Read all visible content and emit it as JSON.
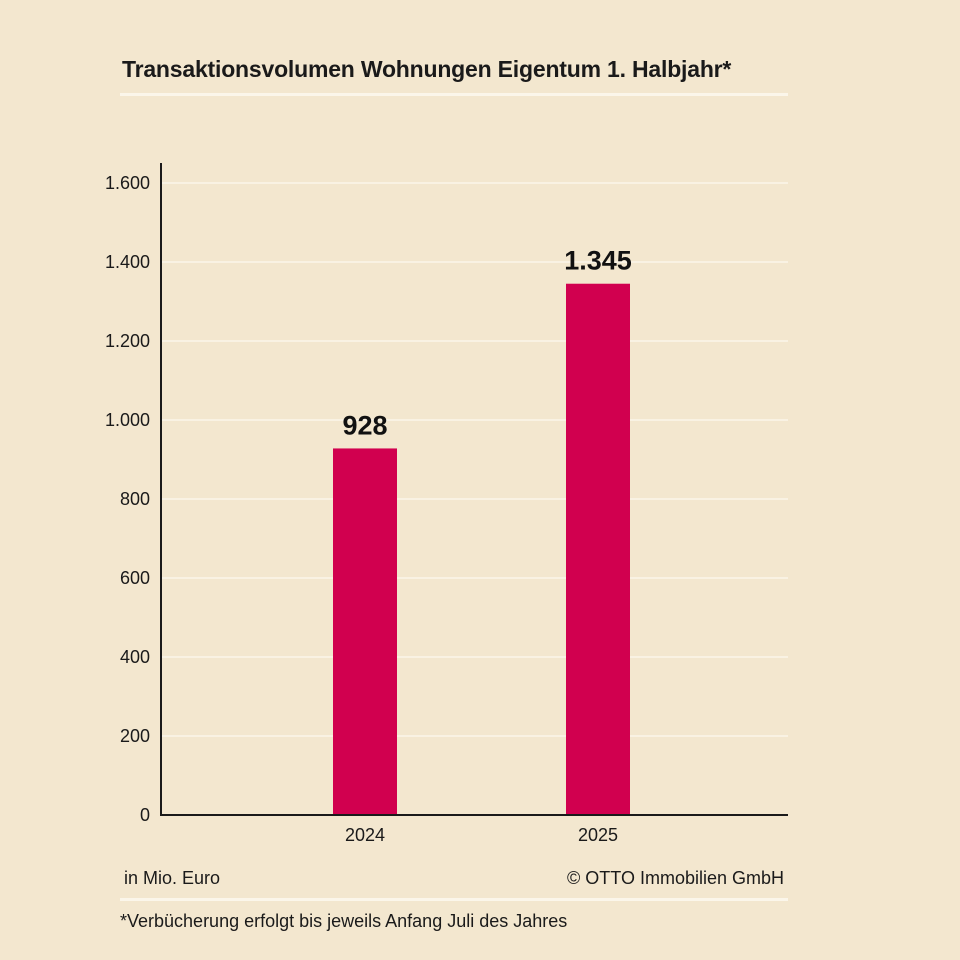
{
  "chart_data": {
    "type": "bar",
    "title": "Transaktionsvolumen Wohnungen Eigentum 1. Halbjahr*",
    "categories": [
      "2024",
      "2025"
    ],
    "values": [
      928,
      1345
    ],
    "data_labels": [
      "928",
      "1.345"
    ],
    "ylim": [
      0,
      1600
    ],
    "yticks": [
      0,
      200,
      400,
      600,
      800,
      1000,
      1200,
      1400,
      1600
    ],
    "ytick_labels": [
      "0",
      "200",
      "400",
      "600",
      "800",
      "1.000",
      "1.200",
      "1.400",
      "1.600"
    ],
    "grid": true,
    "bar_color": "#d1004f",
    "unit_note": "in Mio. Euro",
    "source": "© OTTO Immobilien GmbH",
    "footnote": "*Verbücherung erfolgt bis jeweils Anfang Juli des Jahres"
  }
}
